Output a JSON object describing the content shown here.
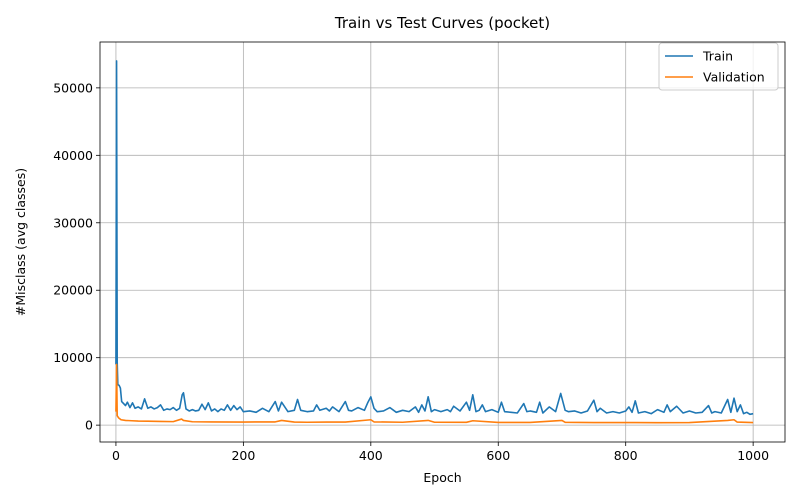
{
  "chart_data": {
    "type": "line",
    "title": "Train vs Test Curves (pocket)",
    "xlabel": "Epoch",
    "ylabel": "#Misclass (avg classes)",
    "xlim": [
      -25,
      1050
    ],
    "ylim": [
      -2500,
      56800
    ],
    "xticks": [
      0,
      200,
      400,
      600,
      800,
      1000
    ],
    "yticks": [
      0,
      10000,
      20000,
      30000,
      40000,
      50000
    ],
    "grid": true,
    "legend_position": "top-right",
    "series": [
      {
        "name": "Train",
        "color": "#1f77b4",
        "points": [
          [
            0,
            9000
          ],
          [
            1,
            54000
          ],
          [
            2,
            9300
          ],
          [
            3,
            6000
          ],
          [
            5,
            5900
          ],
          [
            7,
            5500
          ],
          [
            9,
            3500
          ],
          [
            12,
            3200
          ],
          [
            15,
            2900
          ],
          [
            18,
            3400
          ],
          [
            22,
            2600
          ],
          [
            26,
            3300
          ],
          [
            30,
            2500
          ],
          [
            35,
            2700
          ],
          [
            40,
            2400
          ],
          [
            45,
            3900
          ],
          [
            50,
            2500
          ],
          [
            55,
            2700
          ],
          [
            60,
            2400
          ],
          [
            65,
            2600
          ],
          [
            70,
            3000
          ],
          [
            75,
            2200
          ],
          [
            80,
            2400
          ],
          [
            85,
            2300
          ],
          [
            90,
            2600
          ],
          [
            95,
            2200
          ],
          [
            100,
            2500
          ],
          [
            104,
            4500
          ],
          [
            106,
            4800
          ],
          [
            110,
            2400
          ],
          [
            115,
            2100
          ],
          [
            120,
            2300
          ],
          [
            125,
            2100
          ],
          [
            130,
            2200
          ],
          [
            135,
            3100
          ],
          [
            140,
            2300
          ],
          [
            145,
            3300
          ],
          [
            150,
            2100
          ],
          [
            155,
            2400
          ],
          [
            160,
            2000
          ],
          [
            165,
            2400
          ],
          [
            170,
            2200
          ],
          [
            175,
            3000
          ],
          [
            180,
            2200
          ],
          [
            185,
            2900
          ],
          [
            190,
            2300
          ],
          [
            195,
            2700
          ],
          [
            200,
            2000
          ],
          [
            210,
            2100
          ],
          [
            220,
            1900
          ],
          [
            230,
            2500
          ],
          [
            240,
            2000
          ],
          [
            250,
            3500
          ],
          [
            255,
            2100
          ],
          [
            260,
            3400
          ],
          [
            270,
            2000
          ],
          [
            280,
            2200
          ],
          [
            285,
            3800
          ],
          [
            290,
            2200
          ],
          [
            300,
            2000
          ],
          [
            310,
            2100
          ],
          [
            315,
            3000
          ],
          [
            320,
            2200
          ],
          [
            330,
            2500
          ],
          [
            335,
            2100
          ],
          [
            340,
            2700
          ],
          [
            350,
            2000
          ],
          [
            360,
            3500
          ],
          [
            365,
            2200
          ],
          [
            370,
            2100
          ],
          [
            380,
            2600
          ],
          [
            390,
            2200
          ],
          [
            395,
            3300
          ],
          [
            400,
            4200
          ],
          [
            405,
            2500
          ],
          [
            410,
            2000
          ],
          [
            420,
            2100
          ],
          [
            430,
            2600
          ],
          [
            440,
            1900
          ],
          [
            450,
            2200
          ],
          [
            460,
            2000
          ],
          [
            470,
            2700
          ],
          [
            475,
            1900
          ],
          [
            480,
            3000
          ],
          [
            485,
            2100
          ],
          [
            490,
            4200
          ],
          [
            495,
            2000
          ],
          [
            500,
            2300
          ],
          [
            510,
            2000
          ],
          [
            520,
            2300
          ],
          [
            525,
            2000
          ],
          [
            530,
            2800
          ],
          [
            540,
            2100
          ],
          [
            550,
            3400
          ],
          [
            555,
            2200
          ],
          [
            560,
            4500
          ],
          [
            565,
            2000
          ],
          [
            570,
            2200
          ],
          [
            575,
            3000
          ],
          [
            580,
            2000
          ],
          [
            590,
            2300
          ],
          [
            600,
            1900
          ],
          [
            605,
            3400
          ],
          [
            610,
            2000
          ],
          [
            620,
            1900
          ],
          [
            630,
            1800
          ],
          [
            640,
            3200
          ],
          [
            645,
            2000
          ],
          [
            650,
            2100
          ],
          [
            660,
            1900
          ],
          [
            665,
            3400
          ],
          [
            670,
            1800
          ],
          [
            680,
            2700
          ],
          [
            690,
            2000
          ],
          [
            698,
            4700
          ],
          [
            705,
            2200
          ],
          [
            710,
            2000
          ],
          [
            720,
            2100
          ],
          [
            730,
            1800
          ],
          [
            740,
            2100
          ],
          [
            750,
            3700
          ],
          [
            755,
            2000
          ],
          [
            760,
            2500
          ],
          [
            770,
            1800
          ],
          [
            780,
            2000
          ],
          [
            790,
            1800
          ],
          [
            800,
            2100
          ],
          [
            805,
            2700
          ],
          [
            810,
            1900
          ],
          [
            815,
            3600
          ],
          [
            820,
            1800
          ],
          [
            830,
            2000
          ],
          [
            840,
            1700
          ],
          [
            850,
            2300
          ],
          [
            860,
            1900
          ],
          [
            865,
            3000
          ],
          [
            870,
            2000
          ],
          [
            880,
            2800
          ],
          [
            890,
            1800
          ],
          [
            900,
            2100
          ],
          [
            910,
            1800
          ],
          [
            920,
            1900
          ],
          [
            930,
            2900
          ],
          [
            935,
            1800
          ],
          [
            940,
            2000
          ],
          [
            950,
            1800
          ],
          [
            960,
            3800
          ],
          [
            965,
            1900
          ],
          [
            970,
            4000
          ],
          [
            975,
            2000
          ],
          [
            980,
            3000
          ],
          [
            985,
            1700
          ],
          [
            990,
            1900
          ],
          [
            995,
            1600
          ],
          [
            1000,
            1700
          ]
        ]
      },
      {
        "name": "Validation",
        "color": "#ff7f0e",
        "points": [
          [
            0,
            2000
          ],
          [
            1,
            9000
          ],
          [
            2,
            1400
          ],
          [
            4,
            1100
          ],
          [
            8,
            800
          ],
          [
            15,
            700
          ],
          [
            25,
            650
          ],
          [
            35,
            600
          ],
          [
            50,
            580
          ],
          [
            70,
            550
          ],
          [
            90,
            520
          ],
          [
            103,
            900
          ],
          [
            106,
            700
          ],
          [
            120,
            500
          ],
          [
            150,
            480
          ],
          [
            200,
            460
          ],
          [
            250,
            480
          ],
          [
            260,
            700
          ],
          [
            280,
            450
          ],
          [
            300,
            430
          ],
          [
            330,
            450
          ],
          [
            360,
            460
          ],
          [
            400,
            800
          ],
          [
            405,
            480
          ],
          [
            450,
            430
          ],
          [
            490,
            700
          ],
          [
            500,
            430
          ],
          [
            550,
            420
          ],
          [
            560,
            650
          ],
          [
            600,
            400
          ],
          [
            650,
            400
          ],
          [
            700,
            700
          ],
          [
            705,
            420
          ],
          [
            750,
            380
          ],
          [
            800,
            380
          ],
          [
            850,
            370
          ],
          [
            900,
            380
          ],
          [
            960,
            700
          ],
          [
            970,
            800
          ],
          [
            975,
            450
          ],
          [
            1000,
            380
          ]
        ]
      }
    ]
  }
}
